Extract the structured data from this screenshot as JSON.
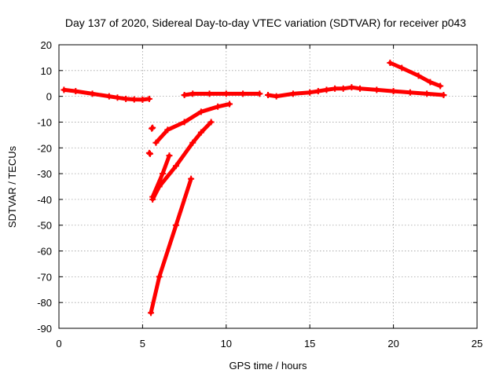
{
  "chart_data": {
    "type": "scatter",
    "title": "Day 137 of 2020, Sidereal Day-to-day VTEC variation (SDTVAR) for receiver p043",
    "xlabel": "GPS time / hours",
    "ylabel": "SDTVAR / TECUs",
    "xlim": [
      0,
      25
    ],
    "ylim": [
      -90,
      20
    ],
    "xticks": [
      0,
      5,
      10,
      15,
      20,
      25
    ],
    "yticks": [
      20,
      10,
      0,
      -10,
      -20,
      -30,
      -40,
      -50,
      -60,
      -70,
      -80,
      -90
    ],
    "grid": true,
    "color": "#ff0000",
    "series": [
      {
        "x": [
          0.3,
          1,
          2,
          3,
          3.5,
          4,
          4.5,
          5,
          5.4
        ],
        "y": [
          2.5,
          2,
          1,
          0,
          -0.5,
          -1,
          -1.2,
          -1.3,
          -1
        ]
      },
      {
        "x": [
          7.5,
          8,
          9,
          10,
          11,
          12
        ],
        "y": [
          0.5,
          1,
          1,
          1,
          1,
          1
        ]
      },
      {
        "x": [
          12.5,
          13,
          14,
          15,
          15.5,
          16,
          16.5,
          17,
          17.5,
          18,
          19,
          20,
          21,
          22,
          23
        ],
        "y": [
          0.5,
          0,
          1,
          1.5,
          2,
          2.5,
          3,
          3,
          3.5,
          3,
          2.5,
          2,
          1.5,
          1,
          0.5
        ]
      },
      {
        "x": [
          19.8,
          20.5,
          21.5,
          22.2,
          22.8
        ],
        "y": [
          13,
          11,
          8,
          5.5,
          4
        ]
      },
      {
        "x": [
          5.8,
          6.5,
          7.5,
          8.5,
          9.5,
          10.2
        ],
        "y": [
          -18,
          -13,
          -10,
          -6,
          -4,
          -3
        ]
      },
      {
        "x": [
          5.6,
          6,
          7,
          8,
          8.5,
          9.1
        ],
        "y": [
          -40,
          -35,
          -27,
          -18,
          -14,
          -10
        ]
      },
      {
        "x": [
          5.6,
          6.2,
          6.6
        ],
        "y": [
          -39,
          -30,
          -23
        ]
      },
      {
        "x": [
          5.5,
          6,
          7,
          7.9
        ],
        "y": [
          -84,
          -70,
          -50,
          -32
        ]
      },
      {
        "x": [
          5.55,
          5.6
        ],
        "y": [
          -12.5,
          -12.2
        ]
      },
      {
        "x": [
          5.4,
          5.45
        ],
        "y": [
          -22,
          -22.3
        ]
      }
    ]
  }
}
